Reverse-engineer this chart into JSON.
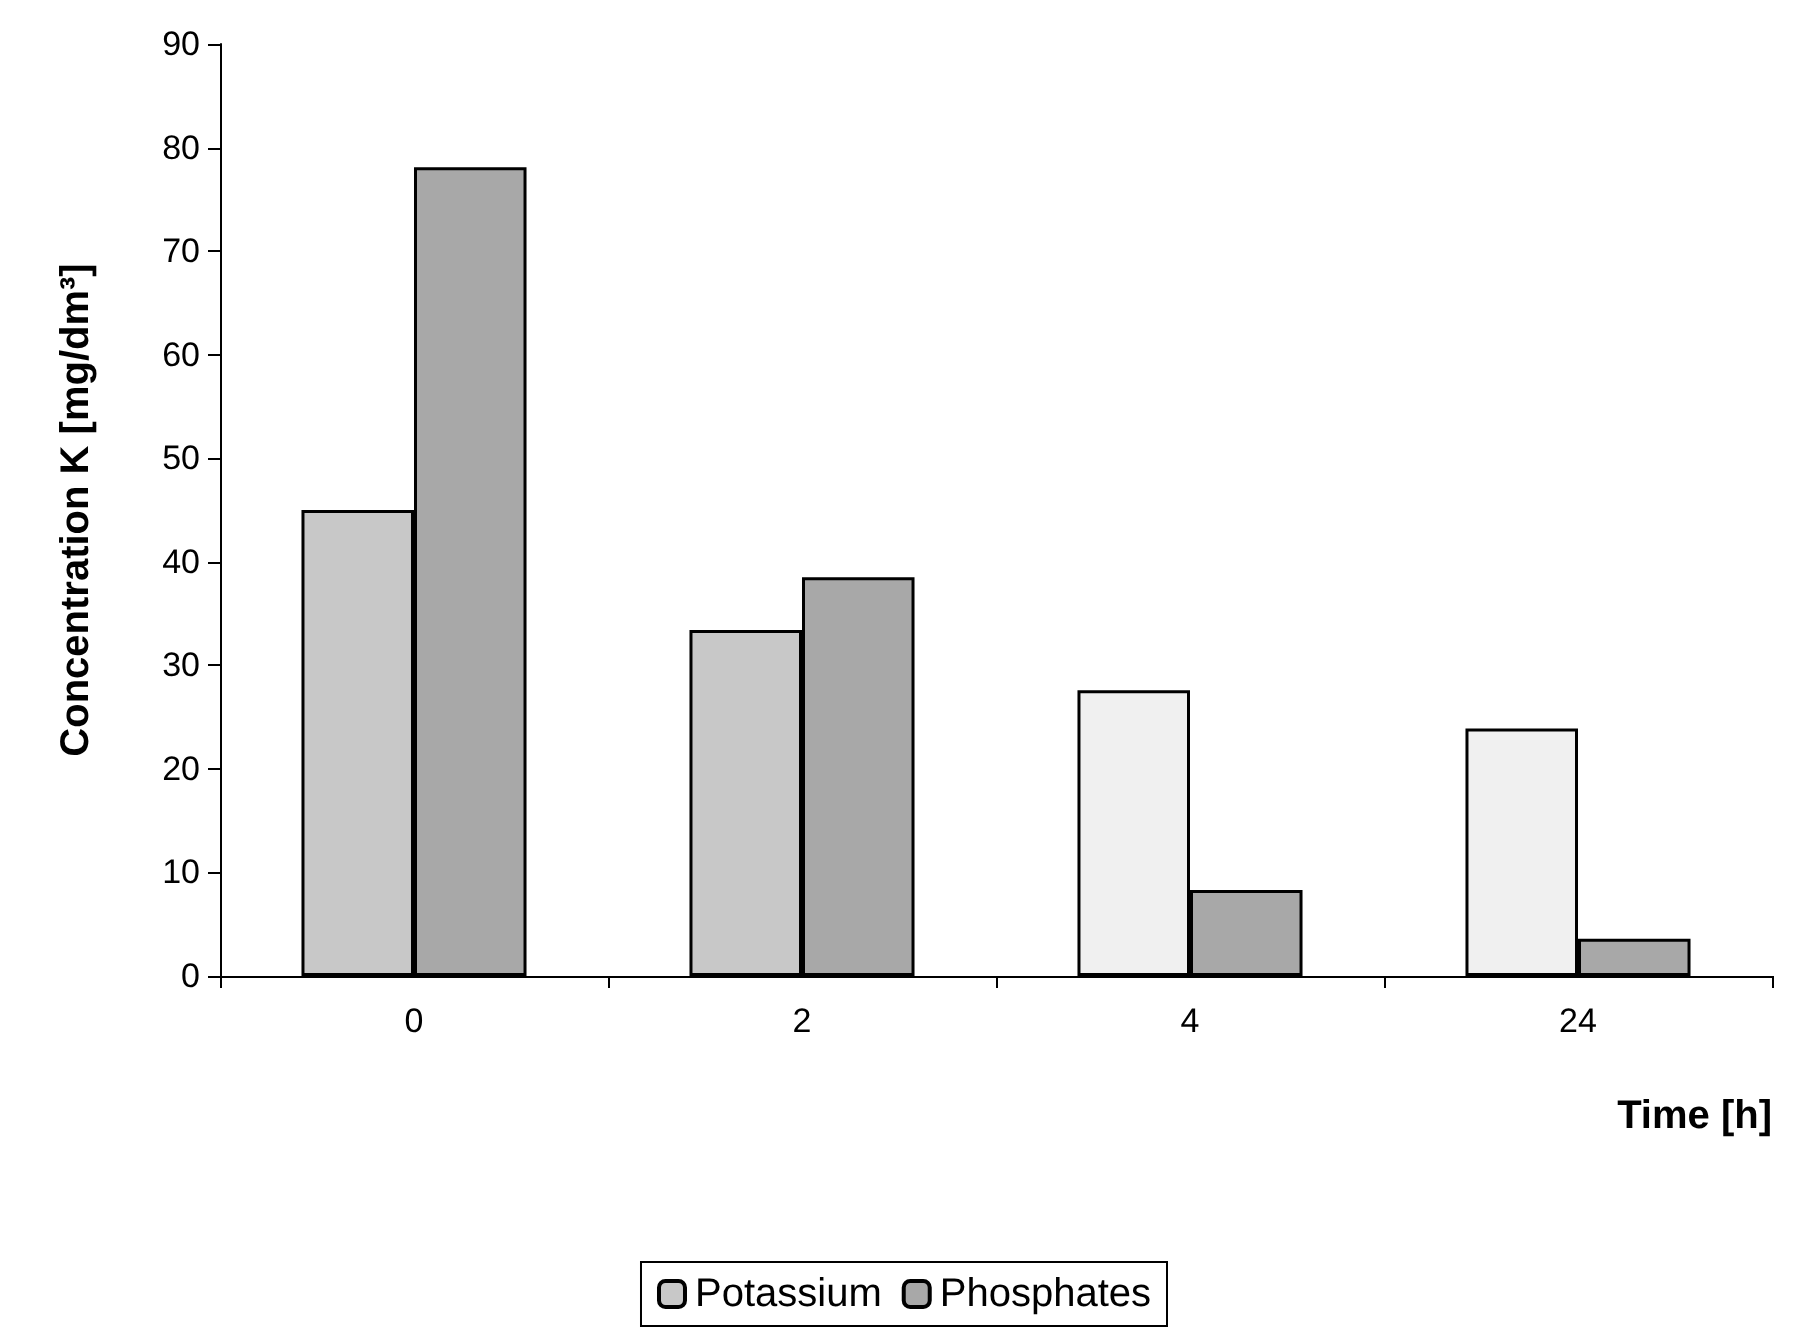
{
  "chart_data": {
    "type": "bar",
    "xlabel": "Time [h]",
    "ylabel": "Concentration K [mg/dm³]",
    "categories": [
      "0",
      "2",
      "4",
      "24"
    ],
    "series": [
      {
        "name": "Potassium",
        "color": "#c8c8c8",
        "colors": [
          "#c8c8c8",
          "#c8c8c8",
          "#f0f0f0",
          "#f0f0f0"
        ],
        "values": [
          45.0,
          33.4,
          27.6,
          23.9
        ]
      },
      {
        "name": "Phosphates",
        "color": "#a8a8a8",
        "values": [
          78.1,
          38.5,
          8.3,
          3.6
        ]
      }
    ],
    "ylim": [
      0,
      90
    ],
    "yticks": [
      0,
      10,
      20,
      30,
      40,
      50,
      60,
      70,
      80,
      90
    ],
    "grid": false,
    "legend": "bottom"
  }
}
